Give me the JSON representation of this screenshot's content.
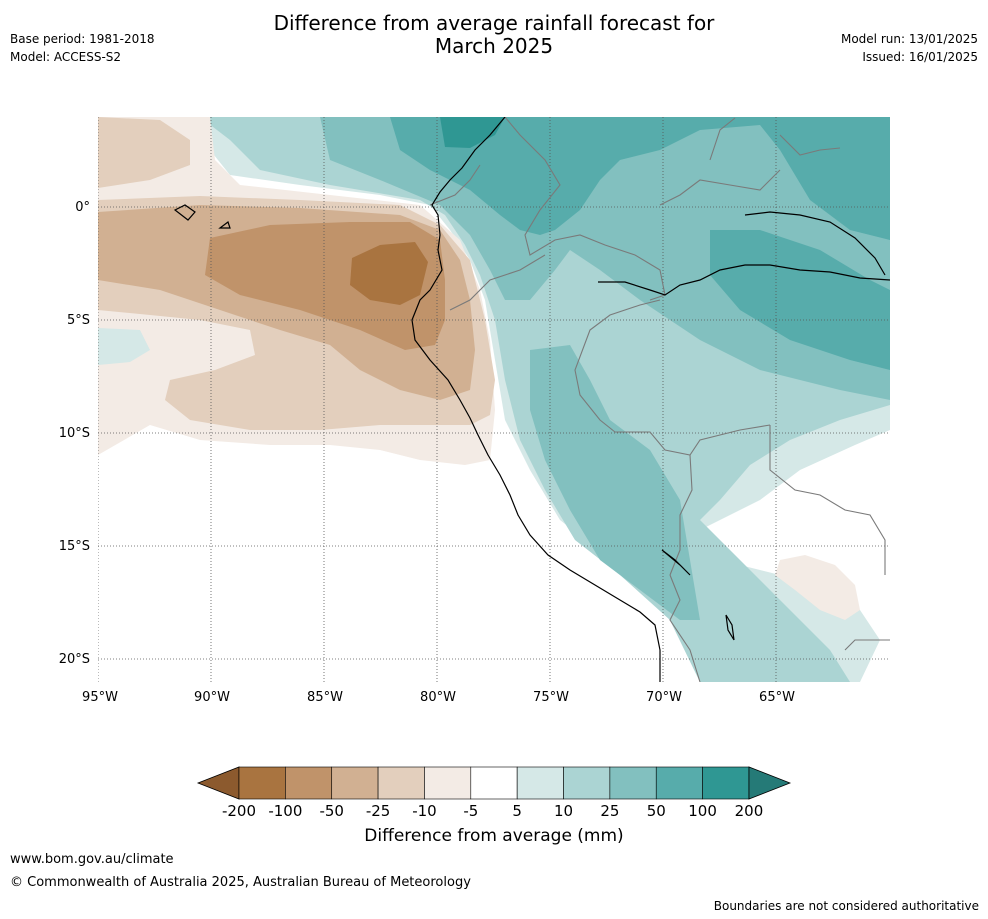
{
  "title_line1": "Difference from average rainfall forecast for",
  "title_line2": "March 2025",
  "base_period": "Base period: 1981-2018",
  "model": "Model: ACCESS-S2",
  "model_run": "Model run: 13/01/2025",
  "issued": "Issued: 16/01/2025",
  "lat_labels": [
    "0°",
    "5°S",
    "10°S",
    "15°S",
    "20°S"
  ],
  "lon_labels": [
    "95°W",
    "90°W",
    "85°W",
    "80°W",
    "75°W",
    "70°W",
    "65°W"
  ],
  "colorbar": {
    "title": "Difference from average (mm)",
    "tick_labels": [
      "-200",
      "-100",
      "-50",
      "-25",
      "-10",
      "-5",
      "5",
      "10",
      "25",
      "50",
      "100",
      "200"
    ],
    "colors": [
      "#8c5a2e",
      "#a97440",
      "#c0936a",
      "#d1b092",
      "#e3cfbd",
      "#f3ebe5",
      "#ffffff",
      "#d5e8e7",
      "#abd4d3",
      "#82c0bf",
      "#57acab",
      "#2f9793",
      "#257a77"
    ]
  },
  "footer_url": "www.bom.gov.au/climate",
  "footer_copyright": "© Commonwealth of Australia 2025, Australian Bureau of Meteorology",
  "footer_disclaimer": "Boundaries are not considered authoritative"
}
